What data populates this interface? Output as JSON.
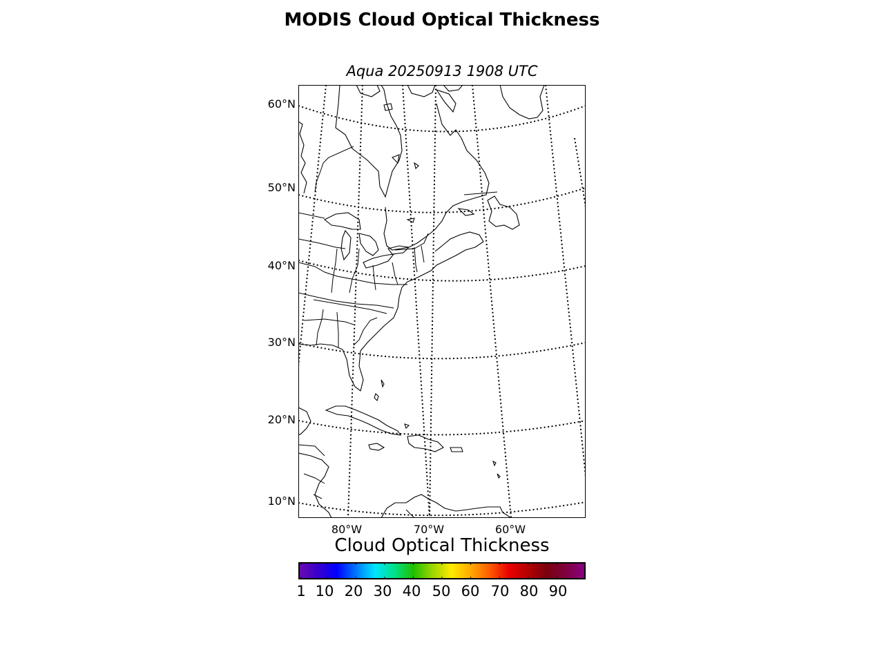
{
  "figure": {
    "title": "MODIS Cloud Optical Thickness",
    "subtitle": "Aqua 20250913 1908 UTC"
  },
  "map": {
    "projection": "conic",
    "lat_labels": [
      "60°N",
      "50°N",
      "40°N",
      "30°N",
      "20°N",
      "10°N"
    ],
    "lon_labels": [
      "80°W",
      "70°W",
      "60°W"
    ],
    "features": [
      "coastlines",
      "country-borders",
      "state-borders"
    ],
    "graticule_style": "dotted"
  },
  "colorbar": {
    "title": "Cloud Optical Thickness",
    "tick_labels": [
      "1",
      "10",
      "20",
      "30",
      "40",
      "50",
      "60",
      "70",
      "80",
      "90"
    ],
    "range": [
      0,
      100
    ],
    "colormap": "rainbow",
    "colors": [
      "#6a0dad",
      "#3a00cc",
      "#0000ff",
      "#0077ff",
      "#00e5ff",
      "#00e08a",
      "#1fbf00",
      "#9cd600",
      "#ffea00",
      "#ffaa00",
      "#ff5a00",
      "#e80000",
      "#b30000",
      "#7a0010",
      "#800040",
      "#880088"
    ]
  }
}
